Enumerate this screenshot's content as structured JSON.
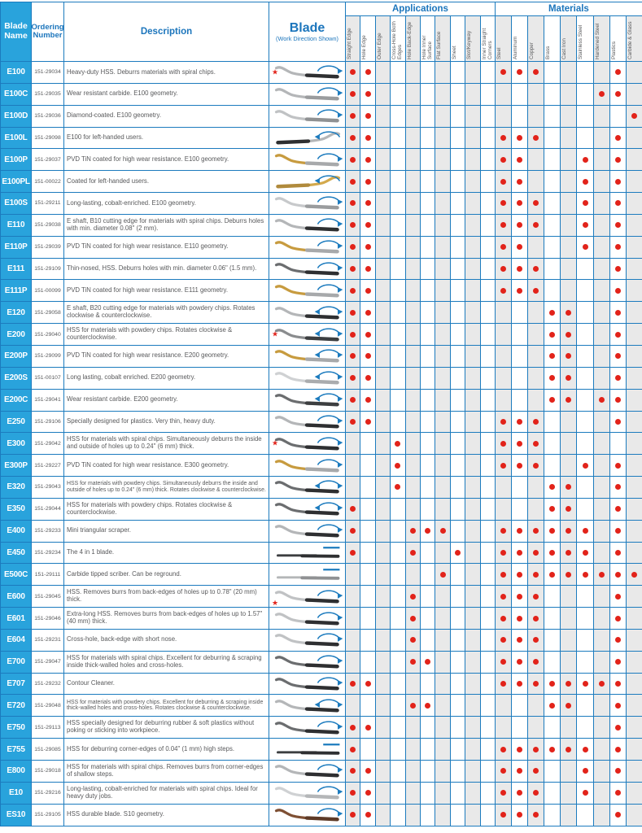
{
  "header": {
    "blade_name_label": "Blade Name",
    "ordering_number_label": "Ordering Number",
    "description_label": "Description",
    "blade_label": "Blade",
    "blade_sub_label": "(Work Direction Shown)",
    "applications_label": "Applications",
    "materials_label": "Materials",
    "application_columns": [
      "Straight Edge",
      "Hole Edge",
      "Outer Edge",
      "Cross-Hole Both Edges",
      "Hole Back-Edge",
      "Hole Inner Surface",
      "Flat Surface",
      "Sheet",
      "Slot/Keyway",
      "Inner Straight Corners"
    ],
    "material_columns": [
      "Steel",
      "Aluminum",
      "Copper",
      "Brass",
      "Cast Iron",
      "Stainless Steel",
      "Hardened Steel",
      "Plastics",
      "Carbide & Glass"
    ]
  },
  "colors": {
    "grid": "#1c7bbe",
    "name_cell": "#29a3dc",
    "header_text": "#1b75bc",
    "dot": "#e2231a",
    "shade": "#e9e9e9",
    "text": "#58595b",
    "arrow": "#1c7bbe"
  },
  "rows": [
    {
      "name": "E100",
      "order": "151-29034",
      "desc": "Heavy-duty HSS. Deburrs materials with spiral chips.",
      "star": true,
      "arrow": "cw",
      "flip": false,
      "shape": "curve",
      "tip": "#b4b6b8",
      "shaft": "#2e2f31",
      "apps": [
        1,
        2
      ],
      "mats": [
        1,
        2,
        3,
        8
      ]
    },
    {
      "name": "E100C",
      "order": "151-29035",
      "desc": "Wear resistant carbide. E100 geometry.",
      "star": false,
      "arrow": "cw",
      "flip": false,
      "shape": "curve",
      "tip": "#b4b6b8",
      "shaft": "#9a9c9e",
      "apps": [
        1,
        2
      ],
      "mats": [
        7,
        8
      ]
    },
    {
      "name": "E100D",
      "order": "151-29036",
      "desc": "Diamond-coated. E100 geometry.",
      "star": false,
      "arrow": "cw",
      "flip": false,
      "shape": "curve",
      "tip": "#c0c2c4",
      "shaft": "#8f9193",
      "apps": [
        1,
        2
      ],
      "mats": [
        9
      ]
    },
    {
      "name": "E100L",
      "order": "151-29098",
      "desc": "E100 for left-handed users.",
      "star": false,
      "arrow": "ccw",
      "flip": true,
      "shape": "curve",
      "tip": "#b4b6b8",
      "shaft": "#2e2f31",
      "apps": [
        1,
        2
      ],
      "mats": [
        1,
        2,
        3,
        8
      ]
    },
    {
      "name": "E100P",
      "order": "151-29037",
      "desc": "PVD TiN coated for high wear resistance. E100 geometry.",
      "star": false,
      "arrow": "cw",
      "flip": false,
      "shape": "curve",
      "tip": "#c79b3f",
      "shaft": "#a7a9ab",
      "apps": [
        1,
        2
      ],
      "mats": [
        1,
        2,
        6,
        8
      ]
    },
    {
      "name": "E100PL",
      "order": "151-00022",
      "desc": "Coated for left-handed users.",
      "star": false,
      "arrow": "ccw",
      "flip": true,
      "shape": "curve",
      "tip": "#d3a94c",
      "shaft": "#b08a3c",
      "apps": [
        1,
        2
      ],
      "mats": [
        1,
        2,
        6,
        8
      ]
    },
    {
      "name": "E100S",
      "order": "151-29211",
      "desc": "Long-lasting, cobalt-enriched. E100 geometry.",
      "star": false,
      "arrow": "cw",
      "flip": false,
      "shape": "curve",
      "tip": "#c7c9cb",
      "shaft": "#9a9c9e",
      "apps": [
        1,
        2
      ],
      "mats": [
        1,
        2,
        3,
        6,
        8
      ]
    },
    {
      "name": "E110",
      "order": "151-29038",
      "desc": "E shaft, B10 cutting edge for materials with spiral chips. Deburrs holes with min. diameter 0.08\" (2 mm).",
      "star": false,
      "arrow": "cw",
      "flip": false,
      "shape": "curve",
      "tip": "#b4b6b8",
      "shaft": "#2e2f31",
      "apps": [
        1,
        2
      ],
      "mats": [
        1,
        2,
        3,
        6,
        8
      ]
    },
    {
      "name": "E110P",
      "order": "151-29039",
      "desc": "PVD TiN coated for high wear resistance. E110 geometry.",
      "star": false,
      "arrow": "cw",
      "flip": false,
      "shape": "curve",
      "tip": "#c79b3f",
      "shaft": "#a7a9ab",
      "apps": [
        1,
        2
      ],
      "mats": [
        1,
        2,
        6,
        8
      ]
    },
    {
      "name": "E111",
      "order": "151-29109",
      "desc": "Thin-nosed, HSS. Deburrs holes with min. diameter 0.06\" (1.5 mm).",
      "star": false,
      "arrow": "cw",
      "flip": false,
      "shape": "curve",
      "tip": "#6b6d6f",
      "shaft": "#2e2f31",
      "apps": [
        1,
        2
      ],
      "mats": [
        1,
        2,
        3,
        8
      ]
    },
    {
      "name": "E111P",
      "order": "151-00099",
      "desc": "PVD TiN coated for high wear resistance. E111 geometry.",
      "star": false,
      "arrow": "cw",
      "flip": false,
      "shape": "curve",
      "tip": "#c79b3f",
      "shaft": "#a7a9ab",
      "apps": [
        1,
        2
      ],
      "mats": [
        1,
        2,
        3,
        8
      ]
    },
    {
      "name": "E120",
      "order": "151-29058",
      "desc": "E shaft, B20 cutting edge for materials with powdery chips. Rotates clockwise & counterclockwise.",
      "star": false,
      "arrow": "both",
      "flip": false,
      "shape": "curve",
      "tip": "#b4b6b8",
      "shaft": "#2e2f31",
      "apps": [
        1,
        2
      ],
      "mats": [
        4,
        5,
        8
      ]
    },
    {
      "name": "E200",
      "order": "151-29040",
      "desc": "HSS for materials with powdery chips. Rotates clockwise & counterclockwise.",
      "star": true,
      "arrow": "both",
      "flip": false,
      "shape": "curve",
      "tip": "#8a8c8e",
      "shaft": "#3c3e40",
      "apps": [
        1,
        2
      ],
      "mats": [
        4,
        5,
        8
      ]
    },
    {
      "name": "E200P",
      "order": "151-29099",
      "desc": "PVD TiN coated for high wear resistance. E200 geometry.",
      "star": false,
      "arrow": "both",
      "flip": false,
      "shape": "curve",
      "tip": "#c79b3f",
      "shaft": "#a7a9ab",
      "apps": [
        1,
        2
      ],
      "mats": [
        4,
        5,
        8
      ]
    },
    {
      "name": "E200S",
      "order": "151-00107",
      "desc": "Long lasting, cobalt enriched. E200 geometry.",
      "star": false,
      "arrow": "both",
      "flip": false,
      "shape": "curve",
      "tip": "#cfd1d3",
      "shaft": "#aaacae",
      "apps": [
        1,
        2
      ],
      "mats": [
        4,
        5,
        8
      ]
    },
    {
      "name": "E200C",
      "order": "151-29041",
      "desc": "Wear resistant carbide. E200 geometry.",
      "star": false,
      "arrow": "both",
      "flip": false,
      "shape": "curve",
      "tip": "#6b6d6f",
      "shaft": "#3c3e40",
      "apps": [
        1,
        2
      ],
      "mats": [
        4,
        5,
        7,
        8
      ]
    },
    {
      "name": "E250",
      "order": "151-29106",
      "desc": "Specially designed for plastics. Very thin, heavy duty.",
      "star": false,
      "arrow": "cw",
      "flip": false,
      "shape": "curve",
      "tip": "#b4b6b8",
      "shaft": "#2e2f31",
      "apps": [
        1,
        2
      ],
      "mats": [
        1,
        2,
        3,
        8
      ]
    },
    {
      "name": "E300",
      "order": "151-29042",
      "desc": "HSS for materials with spiral chips. Simultaneously deburrs the inside and outside of holes up to 0.24\" (6 mm) thick.",
      "star": true,
      "arrow": "cw",
      "flip": false,
      "shape": "curve",
      "tip": "#6b6d6f",
      "shaft": "#2e2f31",
      "apps": [
        4
      ],
      "mats": [
        1,
        2,
        3
      ]
    },
    {
      "name": "E300P",
      "order": "151-29227",
      "desc": "PVD TiN coated for high wear resistance. E300 geometry.",
      "star": false,
      "arrow": "cw",
      "flip": false,
      "shape": "curve",
      "tip": "#c79b3f",
      "shaft": "#a7a9ab",
      "apps": [
        4
      ],
      "mats": [
        1,
        2,
        3,
        6,
        8
      ]
    },
    {
      "name": "E320",
      "order": "151-29043",
      "desc": "HSS for materials with powdery chips. Simultaneously deburrs the inside and outside of holes up to 0.24\" (6 mm) thick. Rotates clockwise & counterclockwise.",
      "star": false,
      "arrow": "both",
      "flip": false,
      "shape": "curve",
      "tip": "#6b6d6f",
      "shaft": "#2e2f31",
      "apps": [
        4
      ],
      "mats": [
        4,
        5,
        8
      ]
    },
    {
      "name": "E350",
      "order": "151-29044",
      "desc": "HSS for materials with powdery chips. Rotates clockwise & counterclockwise.",
      "star": false,
      "arrow": "both",
      "flip": false,
      "shape": "curve",
      "tip": "#6b6d6f",
      "shaft": "#2e2f31",
      "apps": [
        1
      ],
      "mats": [
        4,
        5,
        8
      ]
    },
    {
      "name": "E400",
      "order": "151-29233",
      "desc": "Mini triangular scraper.",
      "star": false,
      "arrow": "cw",
      "flip": false,
      "shape": "curve",
      "tip": "#b4b6b8",
      "shaft": "#2e2f31",
      "apps": [
        1,
        5,
        6,
        7
      ],
      "mats": [
        1,
        2,
        3,
        4,
        5,
        6,
        8
      ]
    },
    {
      "name": "E450",
      "order": "151-29234",
      "desc": "The 4 in 1 blade.",
      "star": false,
      "arrow": "line",
      "flip": false,
      "shape": "straight",
      "tip": "#3c3e40",
      "shaft": "#2e2f31",
      "apps": [
        1,
        5,
        8
      ],
      "mats": [
        1,
        2,
        3,
        4,
        5,
        6,
        8
      ]
    },
    {
      "name": "E500C",
      "order": "151-29111",
      "desc": "Carbide tipped scriber. Can be reground.",
      "star": false,
      "arrow": "line",
      "flip": false,
      "shape": "straight",
      "tip": "#b4b6b8",
      "shaft": "#8f9193",
      "apps": [
        7
      ],
      "mats": [
        1,
        2,
        3,
        4,
        5,
        6,
        7,
        8,
        9
      ]
    },
    {
      "name": "E600",
      "order": "151-29045",
      "desc": "HSS. Removes burrs from back-edges of holes up to 0.78\" (20 mm) thick.",
      "star": true,
      "star_pos": "bottom",
      "arrow": "cw",
      "flip": false,
      "shape": "curve",
      "tip": "#c0c2c4",
      "shaft": "#2e2f31",
      "apps": [
        5
      ],
      "mats": [
        1,
        2,
        3,
        8
      ]
    },
    {
      "name": "E601",
      "order": "151-29046",
      "desc": "Extra-long HSS. Removes burrs from back-edges of holes up to 1.57\" (40 mm) thick.",
      "star": false,
      "arrow": "cw",
      "flip": false,
      "shape": "curve",
      "tip": "#c0c2c4",
      "shaft": "#2e2f31",
      "apps": [
        5
      ],
      "mats": [
        1,
        2,
        3,
        8
      ]
    },
    {
      "name": "E604",
      "order": "151-29231",
      "desc": "Cross-hole, back-edge with short nose.",
      "star": false,
      "arrow": "cw",
      "flip": false,
      "shape": "curve",
      "tip": "#c0c2c4",
      "shaft": "#2e2f31",
      "apps": [
        5
      ],
      "mats": [
        1,
        2,
        3,
        8
      ]
    },
    {
      "name": "E700",
      "order": "151-29047",
      "desc": "HSS for materials with spiral chips. Excellent for deburring & scraping inside thick-walled holes and cross-holes.",
      "star": false,
      "arrow": "cw",
      "flip": false,
      "shape": "curve",
      "tip": "#6b6d6f",
      "shaft": "#2e2f31",
      "apps": [
        5,
        6
      ],
      "mats": [
        1,
        2,
        3,
        8
      ]
    },
    {
      "name": "E707",
      "order": "151-29232",
      "desc": "Contour Cleaner.",
      "star": false,
      "arrow": "cw",
      "flip": false,
      "shape": "curve",
      "tip": "#6b6d6f",
      "shaft": "#2e2f31",
      "apps": [
        1,
        2
      ],
      "mats": [
        1,
        2,
        3,
        4,
        5,
        6,
        7,
        8
      ]
    },
    {
      "name": "E720",
      "order": "151-29048",
      "desc": "HSS for materials with powdery chips. Excellent for deburring & scraping inside thick-walled holes and cross-holes. Rotates clockwise & counterclockwise.",
      "star": false,
      "arrow": "both",
      "flip": false,
      "shape": "curve",
      "tip": "#b4b6b8",
      "shaft": "#2e2f31",
      "apps": [
        5,
        6
      ],
      "mats": [
        4,
        5,
        8
      ]
    },
    {
      "name": "E750",
      "order": "151-29113",
      "desc": "HSS specially designed for deburring rubber & soft plastics without poking or sticking into workpiece.",
      "star": false,
      "arrow": "cw",
      "flip": false,
      "shape": "curve",
      "tip": "#6b6d6f",
      "shaft": "#2e2f31",
      "apps": [
        1,
        2
      ],
      "mats": [
        8
      ]
    },
    {
      "name": "E755",
      "order": "151-29085",
      "desc": "HSS for deburring corner-edges of 0.04\" (1 mm) high steps.",
      "star": false,
      "arrow": "line",
      "flip": false,
      "shape": "straight",
      "tip": "#3c3e40",
      "shaft": "#2e2f31",
      "apps": [
        1
      ],
      "mats": [
        1,
        2,
        3,
        4,
        5,
        6,
        8
      ]
    },
    {
      "name": "E800",
      "order": "151-29018",
      "desc": "HSS for materials with spiral chips. Removes burrs from corner-edges of shallow steps.",
      "star": false,
      "arrow": "cw",
      "flip": false,
      "shape": "curve",
      "tip": "#b4b6b8",
      "shaft": "#2e2f31",
      "apps": [
        1,
        2
      ],
      "mats": [
        1,
        2,
        3,
        6,
        8
      ]
    },
    {
      "name": "E10",
      "order": "151-29216",
      "desc": "Long-lasting, cobalt-enriched for materials with spiral chips. Ideal for heavy duty jobs.",
      "star": false,
      "arrow": "cw",
      "flip": false,
      "shape": "curve",
      "tip": "#cfd1d3",
      "shaft": "#b4b6b8",
      "apps": [
        1,
        2
      ],
      "mats": [
        1,
        2,
        3,
        6,
        8
      ]
    },
    {
      "name": "ES10",
      "order": "151-29105",
      "desc": "HSS durable blade. S10 geometry.",
      "star": false,
      "arrow": "cw",
      "flip": false,
      "shape": "curve",
      "tip": "#7e4f33",
      "shaft": "#5d3a26",
      "apps": [
        1,
        2
      ],
      "mats": [
        1,
        2,
        3,
        8
      ]
    }
  ]
}
